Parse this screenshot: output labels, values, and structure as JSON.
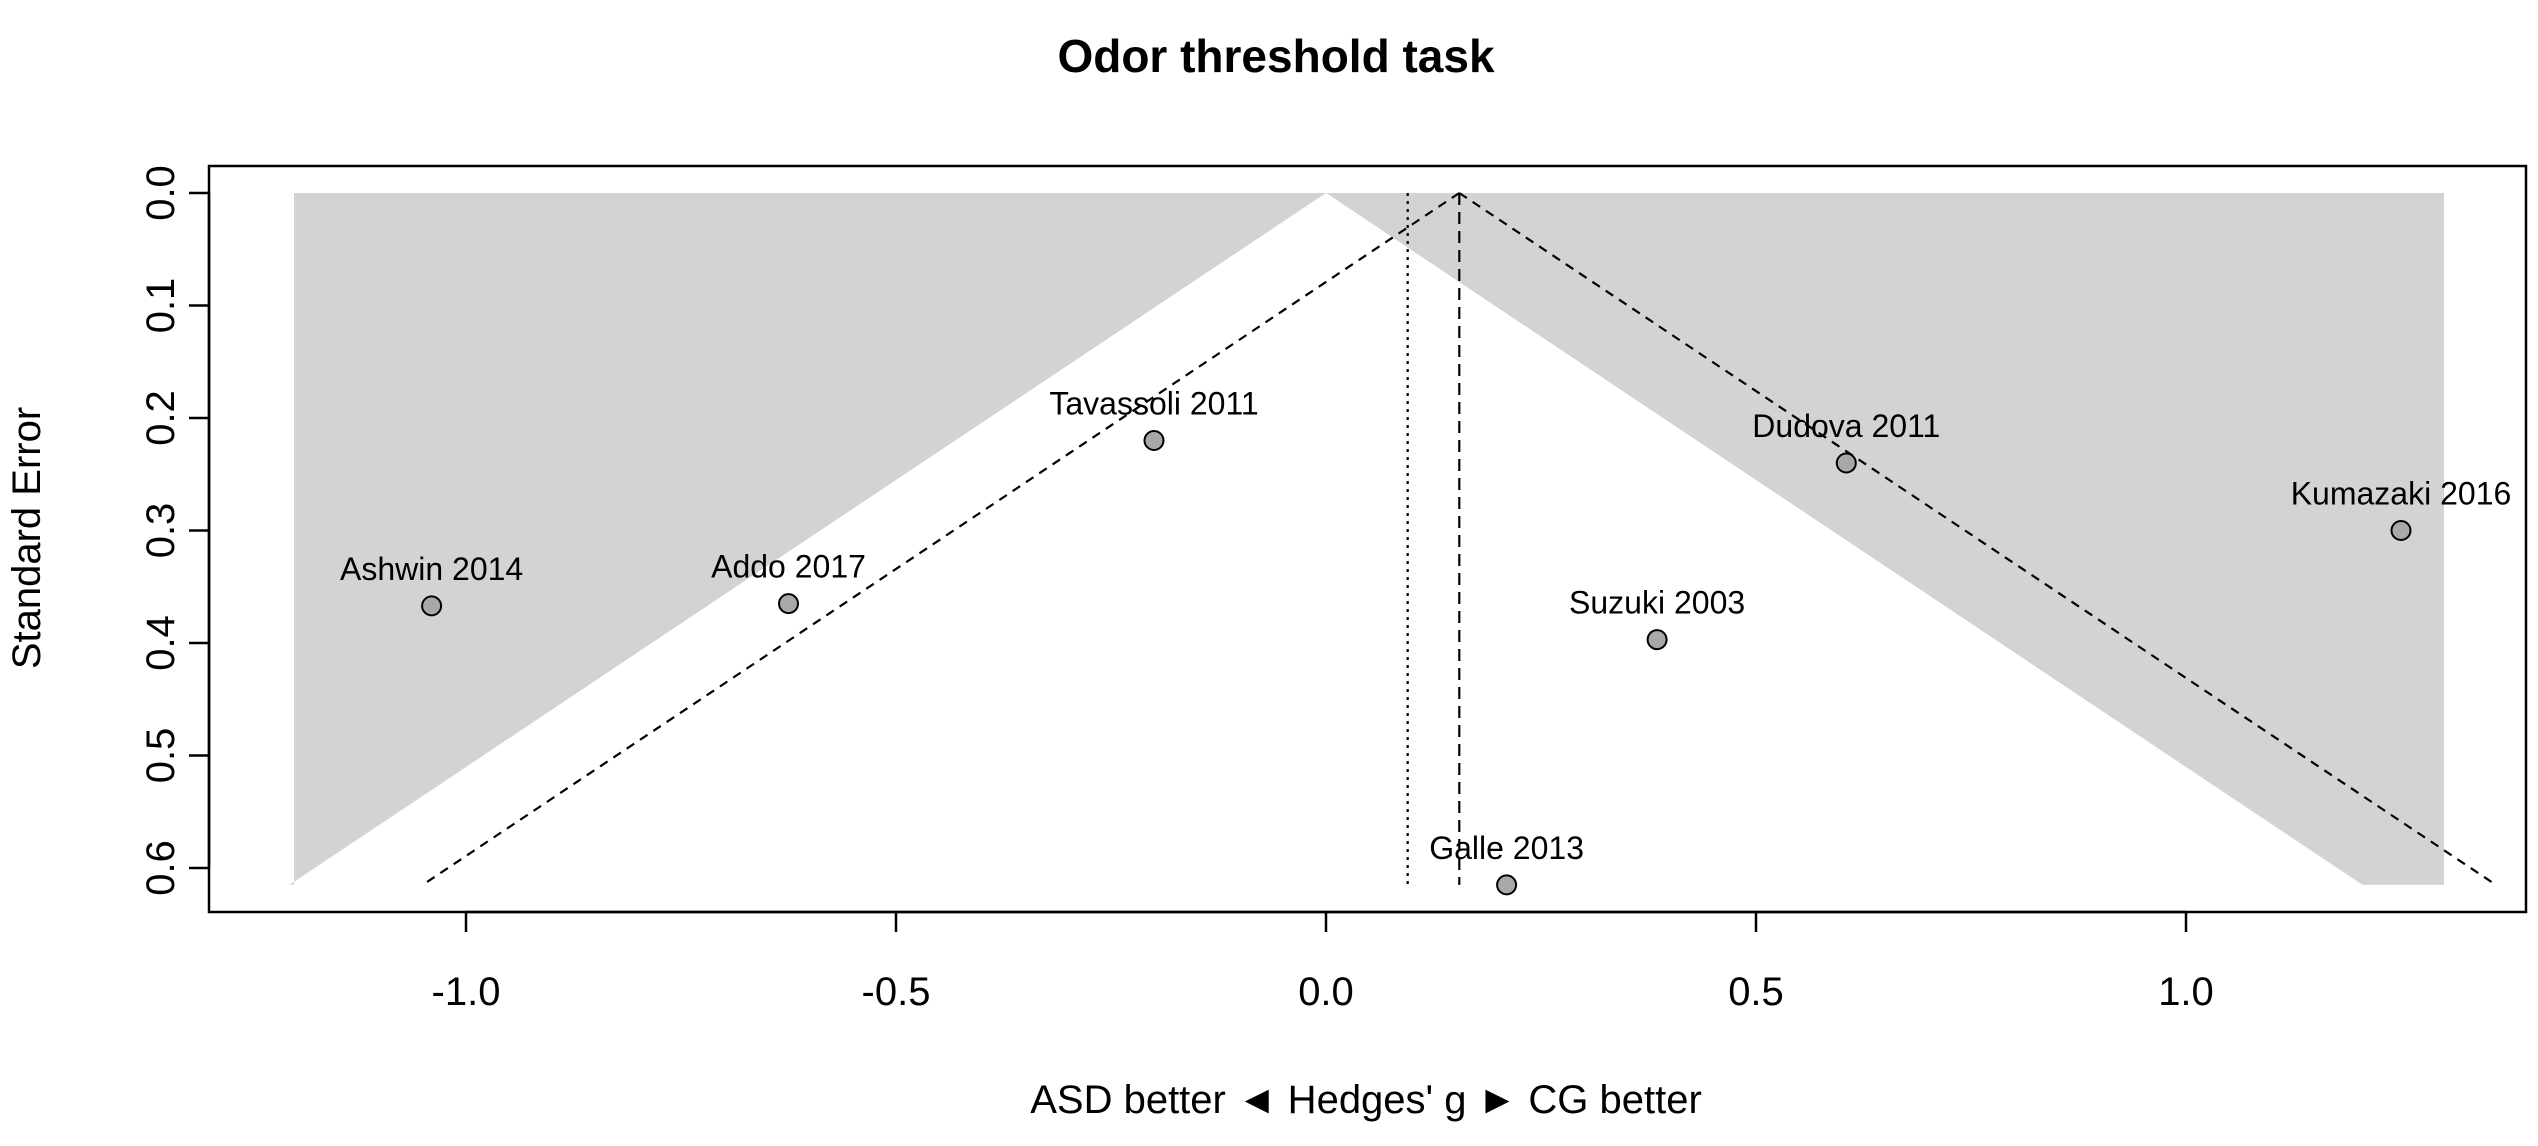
{
  "chart_data": {
    "type": "scatter",
    "subtype": "funnel-plot",
    "title": "Odor threshold task",
    "xlabel": "ASD better ◄ Hedges' g ► CG better",
    "ylabel": "Standard Error",
    "xlim": [
      -1.3,
      1.4
    ],
    "ylim": [
      0.0,
      0.64
    ],
    "y_axis_reversed": true,
    "x_ticks": [
      -1.0,
      -0.5,
      0.0,
      0.5,
      1.0
    ],
    "x_tick_labels": [
      "-1.0",
      "-0.5",
      "0.0",
      "0.5",
      "1.0"
    ],
    "y_ticks": [
      0.0,
      0.1,
      0.2,
      0.3,
      0.4,
      0.5,
      0.6
    ],
    "y_tick_labels": [
      "0.0",
      "0.1",
      "0.2",
      "0.3",
      "0.4",
      "0.5",
      "0.6"
    ],
    "grid": false,
    "legend": "none",
    "points": [
      {
        "label": "Ashwin 2014",
        "x": -1.04,
        "y": 0.367
      },
      {
        "label": "Addo 2017",
        "x": -0.625,
        "y": 0.365
      },
      {
        "label": "Tavassoli 2011",
        "x": -0.2,
        "y": 0.22
      },
      {
        "label": "Galle 2013",
        "x": 0.21,
        "y": 0.615
      },
      {
        "label": "Suzuki 2003",
        "x": 0.385,
        "y": 0.397
      },
      {
        "label": "Dudova 2011",
        "x": 0.605,
        "y": 0.24
      },
      {
        "label": "Kumazaki 2016",
        "x": 1.25,
        "y": 0.3
      }
    ],
    "significance_region_center": 0.0,
    "significance_region_x_extent": [
      -1.2,
      1.3
    ],
    "significance_region_se_max": 0.615,
    "reference_lines": [
      {
        "type": "pooled-estimate",
        "x": 0.155,
        "style": "dashed"
      },
      {
        "type": "adjusted-estimate",
        "x": 0.095,
        "style": "dotted"
      }
    ],
    "funnel_center": 0.155,
    "funnel_se_max": 0.615,
    "point_color": "#a8a8a8",
    "region_color": "#d3d3d3"
  }
}
